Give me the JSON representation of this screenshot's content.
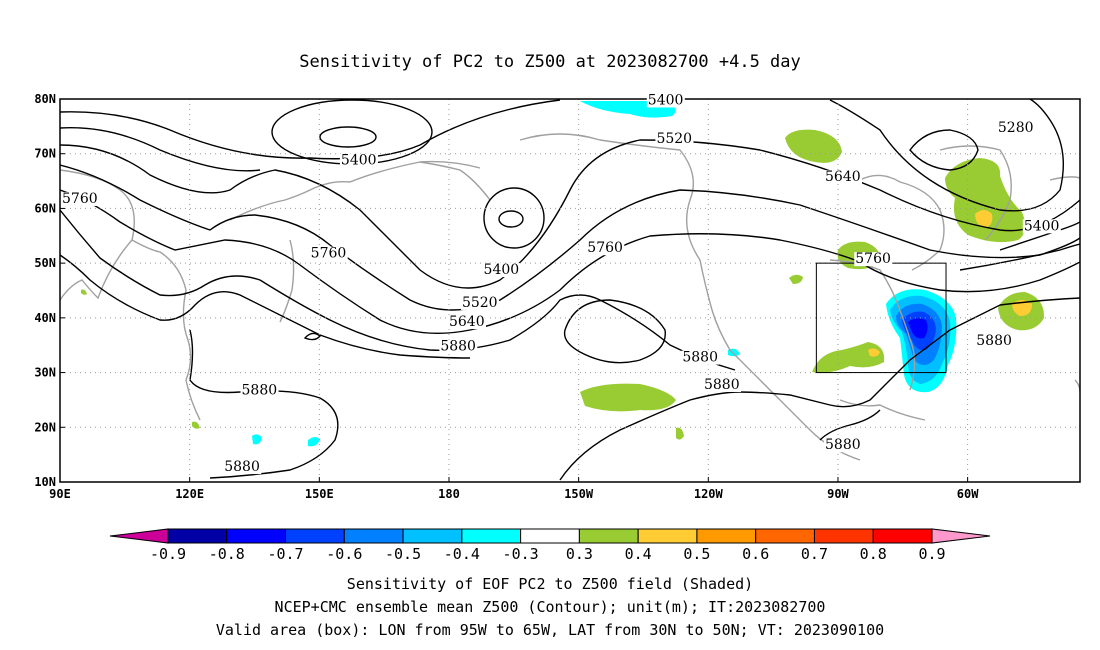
{
  "title": "Sensitivity of PC2 to Z500 at 2023082700 +4.5 day",
  "map": {
    "lat_ticks": [
      "80N",
      "70N",
      "60N",
      "50N",
      "40N",
      "30N",
      "20N",
      "10N"
    ],
    "lon_ticks": [
      "90E",
      "120E",
      "150E",
      "180",
      "150W",
      "120W",
      "90W",
      "60W"
    ],
    "lon_range": [
      90,
      326
    ],
    "lat_range": [
      10,
      80
    ],
    "grid": true
  },
  "contour_labels": [
    {
      "text": "5400",
      "lon": 155,
      "lat": 68
    },
    {
      "text": "5400",
      "lon": 188,
      "lat": 48
    },
    {
      "text": "5400",
      "lon": 226,
      "lat": 79
    },
    {
      "text": "5280",
      "lon": 307,
      "lat": 74
    },
    {
      "text": "5400",
      "lon": 313,
      "lat": 56
    },
    {
      "text": "5520",
      "lon": 228,
      "lat": 72
    },
    {
      "text": "5520",
      "lon": 183,
      "lat": 42
    },
    {
      "text": "5640",
      "lon": 267,
      "lat": 65
    },
    {
      "text": "5640",
      "lon": 180,
      "lat": 38.5
    },
    {
      "text": "5760",
      "lon": 148,
      "lat": 51
    },
    {
      "text": "5760",
      "lon": 90,
      "lat": 61
    },
    {
      "text": "5760",
      "lon": 212,
      "lat": 52
    },
    {
      "text": "5760",
      "lon": 274,
      "lat": 50
    },
    {
      "text": "5880",
      "lon": 178,
      "lat": 34
    },
    {
      "text": "5880",
      "lon": 132,
      "lat": 26
    },
    {
      "text": "5880",
      "lon": 234,
      "lat": 32
    },
    {
      "text": "5880",
      "lon": 239,
      "lat": 27
    },
    {
      "text": "5880",
      "lon": 302,
      "lat": 35
    },
    {
      "text": "5880",
      "lon": 267,
      "lat": 16
    },
    {
      "text": "5880",
      "lon": 128,
      "lat": 12
    }
  ],
  "colorbar": {
    "labels": [
      "-0.9",
      "-0.8",
      "-0.7",
      "-0.6",
      "-0.5",
      "-0.4",
      "-0.3",
      "0.3",
      "0.4",
      "0.5",
      "0.6",
      "0.7",
      "0.8",
      "0.9"
    ],
    "colors": [
      "#0000a6",
      "#0000ff",
      "#0040ff",
      "#0080ff",
      "#00c0ff",
      "#00ffff",
      "#ffffff",
      "#99cc33",
      "#ffcc33",
      "#ff9900",
      "#ff6600",
      "#ff3300",
      "#ff0000"
    ],
    "low_end_color": "#cc0099",
    "high_end_color": "#ff99cc"
  },
  "valid_box": {
    "lon_min": 265,
    "lon_max": 295,
    "lat_min": 30,
    "lat_max": 50
  },
  "captions": [
    "Sensitivity of EOF PC2 to Z500 field (Shaded)",
    "NCEP+CMC ensemble mean Z500 (Contour); unit(m); IT:2023082700",
    "Valid area (box): LON from 95W to 65W, LAT from 30N to 50N; VT: 2023090100"
  ]
}
